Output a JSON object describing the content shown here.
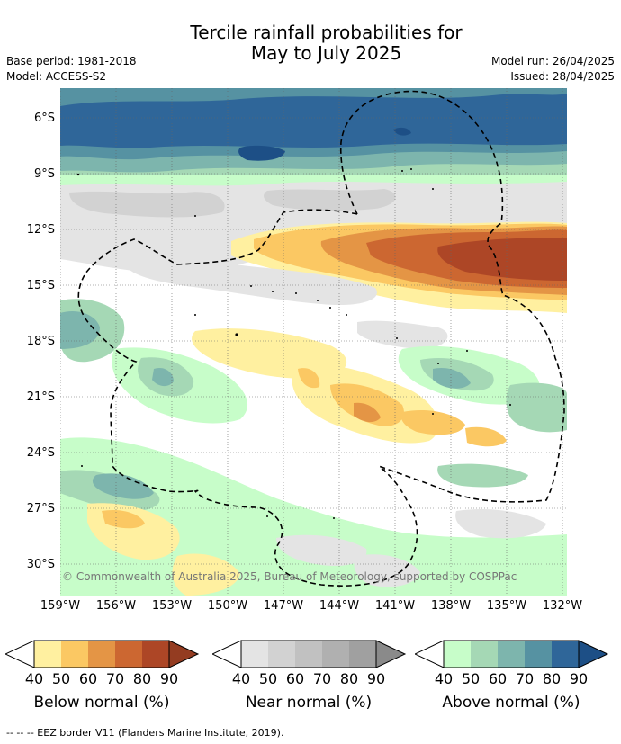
{
  "title_line1": "Tercile rainfall probabilities for",
  "title_line2": "May to July 2025",
  "base_period": "Base period: 1981-2018",
  "model": "Model: ACCESS-S2",
  "model_run": "Model run: 26/04/2025",
  "issued": "Issued: 28/04/2025",
  "lat_labels": [
    "6°S",
    "9°S",
    "12°S",
    "15°S",
    "18°S",
    "21°S",
    "24°S",
    "27°S",
    "30°S"
  ],
  "lon_labels": [
    "159°W",
    "156°W",
    "153°W",
    "150°W",
    "147°W",
    "144°W",
    "141°W",
    "138°W",
    "135°W",
    "132°W"
  ],
  "copyright": "© Commonwealth of Australia 2025, Bureau of Meteorology, supported by COSPPac",
  "colorbars": [
    {
      "label": "Below normal (%)",
      "ticks": [
        "40",
        "50",
        "60",
        "70",
        "80",
        "90"
      ],
      "colors": [
        "#fff0a0",
        "#fbc863",
        "#e49545",
        "#cc6731",
        "#ad4626",
        "#943c21"
      ]
    },
    {
      "label": "Near normal (%)",
      "ticks": [
        "40",
        "50",
        "60",
        "70",
        "80",
        "90"
      ],
      "colors": [
        "#e4e4e4",
        "#d2d2d2",
        "#c1c1c1",
        "#b0b0b0",
        "#a0a0a0",
        "#8a8a8a"
      ]
    },
    {
      "label": "Above normal (%)",
      "ticks": [
        "40",
        "50",
        "60",
        "70",
        "80",
        "90"
      ],
      "colors": [
        "#c7fdc9",
        "#a5d8b5",
        "#7db5ad",
        "#5692a2",
        "#2f6699",
        "#1d4f86"
      ]
    }
  ],
  "footer": "-- -- -- EEZ border V11 (Flanders Marine Institute, 2019)."
}
